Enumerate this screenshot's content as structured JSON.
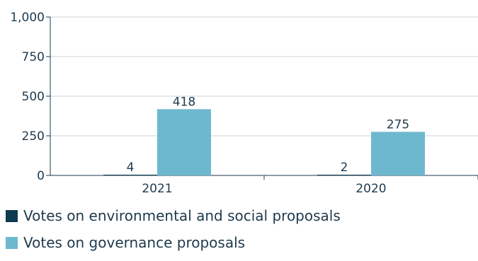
{
  "chart_data": {
    "type": "bar",
    "categories": [
      "2021",
      "2020"
    ],
    "series": [
      {
        "name": "Votes on environmental and social proposals",
        "values": [
          4,
          2
        ],
        "color": "#0e3a52"
      },
      {
        "name": "Votes on governance proposals",
        "values": [
          418,
          275
        ],
        "color": "#6db8cf"
      }
    ],
    "ylim": [
      0,
      1000
    ],
    "yticks": [
      0,
      250,
      500,
      750,
      1000
    ],
    "ytick_labels": [
      "0",
      "250",
      "500",
      "750",
      "1,000"
    ],
    "data_labels": [
      [
        "4",
        "2"
      ],
      [
        "418",
        "275"
      ]
    ],
    "grid": true,
    "legend": "bottom-left",
    "title": "",
    "xlabel": "",
    "ylabel": ""
  }
}
